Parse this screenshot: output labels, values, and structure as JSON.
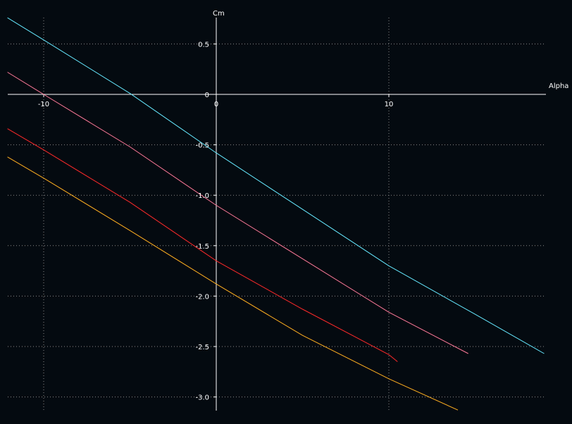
{
  "chart_data": {
    "type": "line",
    "title": "",
    "xlabel": "Alpha",
    "ylabel": "Cm",
    "xlim": [
      -12.1,
      19.0
    ],
    "ylim": [
      -3.13,
      0.75
    ],
    "grid": true,
    "legend": "none",
    "x_ticks": [
      -10,
      0,
      10
    ],
    "x_tick_labels": [
      "-10",
      "0",
      "10"
    ],
    "y_ticks": [
      0.5,
      0,
      -0.5,
      -1.0,
      -1.5,
      -2.0,
      -2.5,
      -3.0
    ],
    "y_tick_labels": [
      "0.5",
      "0",
      "-0.5",
      "-1.0",
      "-1.5",
      "-2.0",
      "-2.5",
      "-3.0"
    ],
    "colors": {
      "background": "#040a10",
      "axis": "#ffffff",
      "grid": "#8a8a8a"
    },
    "series": [
      {
        "color": "#66e8ff",
        "x": [
          -12.1,
          -10,
          -5,
          0,
          5,
          10,
          15,
          19.0
        ],
        "y": [
          0.76,
          0.54,
          0.01,
          -0.58,
          -1.14,
          -1.7,
          -2.18,
          -2.57
        ]
      },
      {
        "color": "#ff7a9a",
        "x": [
          -12.1,
          -10,
          -5,
          0,
          5,
          10,
          14.6
        ],
        "y": [
          0.22,
          0.0,
          -0.52,
          -1.1,
          -1.63,
          -2.16,
          -2.57
        ]
      },
      {
        "color": "#ff2a2a",
        "x": [
          -12.1,
          -10,
          -5,
          0,
          5,
          10,
          10.5
        ],
        "y": [
          -0.34,
          -0.55,
          -1.07,
          -1.65,
          -2.13,
          -2.58,
          -2.65
        ]
      },
      {
        "color": "#ffb020",
        "x": [
          -12.1,
          -10,
          -5,
          0,
          5,
          10,
          14.0
        ],
        "y": [
          -0.62,
          -0.83,
          -1.35,
          -1.88,
          -2.39,
          -2.82,
          -3.13
        ]
      }
    ]
  }
}
